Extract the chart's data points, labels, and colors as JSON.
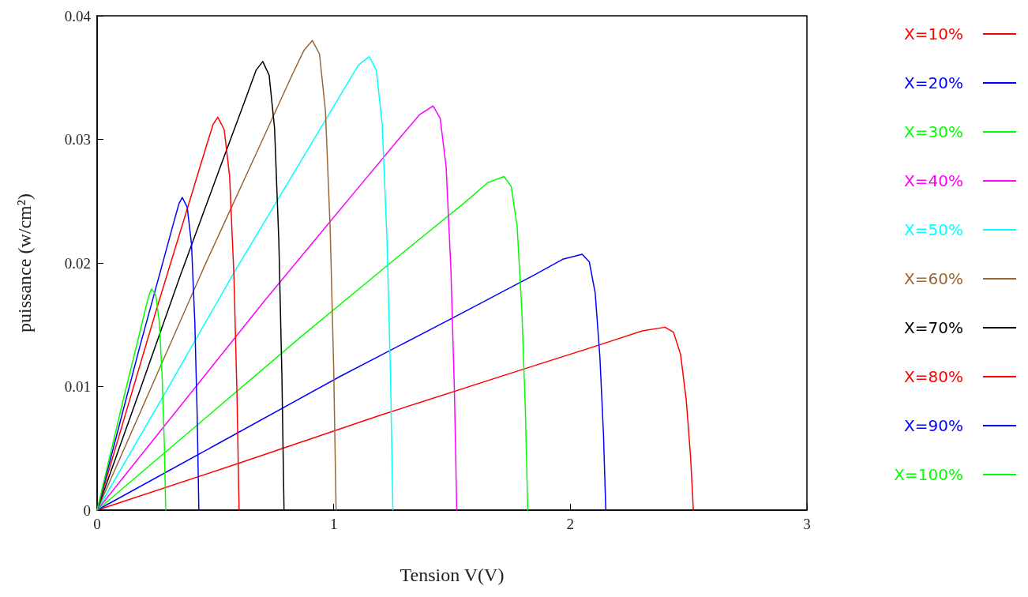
{
  "chart_data": {
    "type": "line",
    "xlabel": "Tension V(V)",
    "ylabel": "puissance (w/cm²)",
    "xlim": [
      0,
      3
    ],
    "xticks": [
      0,
      1,
      2,
      3
    ],
    "ylim": [
      0,
      0.04
    ],
    "yticks": [
      0,
      0.01,
      0.02,
      0.03,
      0.04
    ],
    "grid": false,
    "legend": "right",
    "marker": "none",
    "line_style": "solid",
    "series": [
      {
        "name": "X=10%",
        "color": "#ff0000",
        "x": [
          0,
          0.6,
          1.2,
          1.8,
          2.16,
          2.304,
          2.4,
          2.436,
          2.466,
          2.49,
          2.508,
          2.52
        ],
        "values": [
          0,
          0.0038,
          0.0077,
          0.0114,
          0.0136,
          0.0145,
          0.0148,
          0.0144,
          0.0126,
          0.0089,
          0.0044,
          0
        ]
      },
      {
        "name": "X=20%",
        "color": "#0000ff",
        "x": [
          0,
          0.513,
          1.025,
          1.538,
          1.845,
          1.968,
          2.05,
          2.08,
          2.105,
          2.125,
          2.14,
          2.15
        ],
        "values": [
          0,
          0.0054,
          0.0108,
          0.0159,
          0.019,
          0.0203,
          0.0207,
          0.0201,
          0.0176,
          0.0124,
          0.0062,
          0
        ]
      },
      {
        "name": "X=30%",
        "color": "#00ff00",
        "x": [
          0,
          0.43,
          0.86,
          1.29,
          1.548,
          1.651,
          1.72,
          1.75,
          1.775,
          1.795,
          1.81,
          1.82
        ],
        "values": [
          0,
          0.007,
          0.014,
          0.0208,
          0.0248,
          0.0265,
          0.027,
          0.0262,
          0.023,
          0.0162,
          0.0081,
          0
        ]
      },
      {
        "name": "X=40%",
        "color": "#ff00ff",
        "x": [
          0,
          0.355,
          0.71,
          1.065,
          1.278,
          1.363,
          1.42,
          1.45,
          1.475,
          1.495,
          1.51,
          1.52
        ],
        "values": [
          0,
          0.0085,
          0.017,
          0.0252,
          0.0301,
          0.032,
          0.0327,
          0.0317,
          0.0278,
          0.0196,
          0.0098,
          0
        ]
      },
      {
        "name": "X=50%",
        "color": "#00ffff",
        "x": [
          0,
          0.288,
          0.575,
          0.863,
          1.035,
          1.104,
          1.15,
          1.18,
          1.205,
          1.225,
          1.24,
          1.25
        ],
        "values": [
          0,
          0.0095,
          0.0191,
          0.0283,
          0.0338,
          0.036,
          0.0367,
          0.0356,
          0.0312,
          0.022,
          0.011,
          0
        ]
      },
      {
        "name": "X=60%",
        "color": "#996633",
        "x": [
          0,
          0.228,
          0.455,
          0.683,
          0.819,
          0.874,
          0.91,
          0.94,
          0.965,
          0.985,
          1.0,
          1.01
        ],
        "values": [
          0,
          0.0099,
          0.0198,
          0.0293,
          0.035,
          0.0372,
          0.038,
          0.0369,
          0.0323,
          0.0228,
          0.0114,
          0
        ]
      },
      {
        "name": "X=70%",
        "color": "#000000",
        "x": [
          0,
          0.175,
          0.35,
          0.525,
          0.63,
          0.672,
          0.7,
          0.727,
          0.75,
          0.768,
          0.781,
          0.79
        ],
        "values": [
          0,
          0.0094,
          0.0189,
          0.028,
          0.0334,
          0.0356,
          0.0363,
          0.0352,
          0.0309,
          0.0218,
          0.0109,
          0
        ]
      },
      {
        "name": "X=80%",
        "color": "#ff0000",
        "x": [
          0,
          0.128,
          0.255,
          0.383,
          0.459,
          0.49,
          0.51,
          0.537,
          0.56,
          0.578,
          0.591,
          0.6
        ],
        "values": [
          0,
          0.0083,
          0.0165,
          0.0245,
          0.0293,
          0.0312,
          0.0318,
          0.0308,
          0.027,
          0.0191,
          0.0095,
          0
        ]
      },
      {
        "name": "X=90%",
        "color": "#0000ff",
        "x": [
          0,
          0.09,
          0.18,
          0.27,
          0.324,
          0.346,
          0.36,
          0.381,
          0.399,
          0.413,
          0.423,
          0.43
        ],
        "values": [
          0,
          0.0066,
          0.0132,
          0.0195,
          0.0233,
          0.0248,
          0.0253,
          0.0245,
          0.0215,
          0.0152,
          0.0076,
          0
        ]
      },
      {
        "name": "X=100%",
        "color": "#00ff00",
        "x": [
          0,
          0.058,
          0.115,
          0.173,
          0.207,
          0.221,
          0.23,
          0.248,
          0.263,
          0.275,
          0.284,
          0.29
        ],
        "values": [
          0,
          0.0047,
          0.0093,
          0.0138,
          0.0165,
          0.0175,
          0.0179,
          0.0174,
          0.0152,
          0.0107,
          0.0054,
          0
        ]
      }
    ]
  }
}
